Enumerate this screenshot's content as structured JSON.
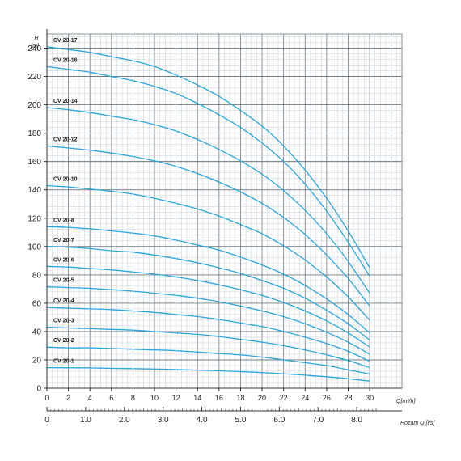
{
  "chart_data": {
    "type": "line",
    "title": "",
    "xlabel": "Q[m³/h]",
    "x2label": "Hozam Q [l/s]",
    "ylabel": "H",
    "yunit": "[m]",
    "xlim": [
      0,
      30
    ],
    "ylim": [
      0,
      250
    ],
    "x_ticks": [
      "0",
      "2",
      "4",
      "6",
      "8",
      "10",
      "12",
      "14",
      "16",
      "18",
      "20",
      "22",
      "24",
      "26",
      "28",
      "30"
    ],
    "x2_ticks": [
      "0",
      "1.0",
      "2.0",
      "3.0",
      "4.0",
      "5.0",
      "6.0",
      "7.0",
      "8.0"
    ],
    "y_ticks": [
      "0",
      "20",
      "40",
      "60",
      "80",
      "100",
      "120",
      "140",
      "160",
      "180",
      "200",
      "220",
      "240"
    ],
    "x2_tick_values_ls": [
      0,
      1,
      2,
      3,
      4,
      5,
      6,
      7,
      8
    ],
    "grid": true,
    "x": [
      0,
      2,
      4,
      6,
      8,
      10,
      12,
      14,
      16,
      18,
      20,
      22,
      24,
      26,
      28,
      30
    ],
    "series": [
      {
        "name": "CV 20-17",
        "values": [
          241,
          239,
          237,
          234,
          231,
          227,
          221,
          214,
          206,
          196,
          185,
          171,
          154,
          134,
          111,
          85
        ]
      },
      {
        "name": "CV 20-16",
        "values": [
          227,
          225,
          223,
          220,
          217,
          213,
          208,
          201,
          193,
          184,
          173,
          160,
          144,
          125,
          103,
          79
        ]
      },
      {
        "name": "CV 20-14",
        "values": [
          198,
          196.5,
          194.5,
          192,
          189.5,
          186,
          181.5,
          175.5,
          168.5,
          160.5,
          151,
          139.5,
          125.5,
          109,
          89.5,
          67
        ]
      },
      {
        "name": "CV 20-12",
        "values": [
          171,
          169.5,
          168,
          166,
          163.5,
          160.5,
          156.5,
          151.5,
          145.5,
          138.5,
          130.5,
          120.5,
          108.5,
          94,
          77.5,
          58
        ]
      },
      {
        "name": "CV 20-10",
        "values": [
          143,
          142,
          140.5,
          139,
          137,
          134,
          130.5,
          126.5,
          121.5,
          115.5,
          109,
          100.5,
          90.5,
          78.5,
          64.5,
          48
        ]
      },
      {
        "name": "CV 20-8",
        "values": [
          114,
          113.5,
          112.5,
          111,
          109.5,
          107.5,
          104.5,
          101,
          97.5,
          92.5,
          87,
          80.5,
          72.5,
          63,
          52,
          39
        ]
      },
      {
        "name": "CV 20-7",
        "values": [
          100,
          99.5,
          98.5,
          97,
          96,
          94,
          91.5,
          88.5,
          85,
          81,
          76,
          70.5,
          63.5,
          55,
          45.5,
          34
        ]
      },
      {
        "name": "CV 20-6",
        "values": [
          86,
          85.5,
          84.5,
          83.5,
          82,
          80.5,
          78.5,
          76,
          73,
          69.5,
          65.5,
          60.5,
          54.5,
          47.5,
          39,
          29
        ]
      },
      {
        "name": "CV 20-5",
        "values": [
          71.5,
          71,
          70.5,
          69.5,
          68.5,
          67,
          65.5,
          63.5,
          61,
          58,
          54.5,
          50.5,
          45.5,
          39.5,
          32.5,
          24
        ]
      },
      {
        "name": "CV 20-4",
        "values": [
          57,
          56.5,
          56,
          55.5,
          54.5,
          53.5,
          52,
          50.5,
          48.5,
          46,
          43.5,
          40,
          36,
          31.5,
          26,
          19
        ]
      },
      {
        "name": "CV 20-3",
        "values": [
          43,
          42.5,
          42,
          41.5,
          41,
          40,
          39,
          38,
          36.5,
          34.5,
          32.5,
          30,
          27,
          23.5,
          19.5,
          14.5
        ]
      },
      {
        "name": "CV 20-2",
        "values": [
          29,
          28.5,
          28.5,
          28,
          27.5,
          27,
          26.5,
          25.5,
          24.5,
          23.5,
          22,
          20,
          18,
          16,
          13,
          10
        ]
      },
      {
        "name": "CV 20-1",
        "values": [
          14.5,
          14.4,
          14.3,
          14,
          13.8,
          13.5,
          13.2,
          12.8,
          12.3,
          11.7,
          11,
          10.2,
          9.2,
          8.1,
          6.7,
          5
        ]
      }
    ],
    "colors": {
      "grid_minor": "#b9c3cb",
      "grid_major": "#6f7a82",
      "curve": "#2aa6de",
      "axis": "#333333"
    }
  }
}
